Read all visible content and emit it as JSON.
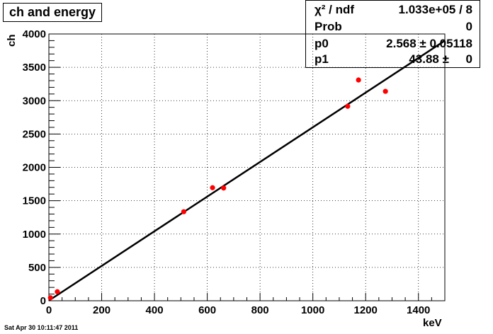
{
  "title": "ch and energy",
  "stats": {
    "rows": [
      {
        "label": "χ² / ndf",
        "value": "1.033e+05 / 8"
      },
      {
        "label": "Prob",
        "value": "0"
      },
      {
        "label": "p0",
        "value": "2.568 ± 0.05118"
      },
      {
        "label": "p1",
        "value": "43.88 ±     0"
      }
    ]
  },
  "timestamp": "Sat Apr 30 10:11:47 2011",
  "colors": {
    "points": "#ff0000",
    "fit_line": "#000000",
    "frame": "#000000",
    "grid": "#000000"
  },
  "chart_data": {
    "type": "scatter",
    "title": "ch and energy",
    "xlabel": "keV",
    "ylabel": "ch",
    "xlim": [
      0,
      1500
    ],
    "ylim": [
      0,
      4000
    ],
    "xticks": [
      0,
      200,
      400,
      600,
      800,
      1000,
      1200,
      1400
    ],
    "yticks": [
      0,
      500,
      1000,
      1500,
      2000,
      2500,
      3000,
      3500,
      4000
    ],
    "grid": true,
    "points": {
      "x": [
        6,
        32,
        511,
        620,
        662,
        1132,
        1173,
        1275
      ],
      "y": [
        45,
        135,
        1335,
        1695,
        1690,
        2915,
        3310,
        3140
      ]
    },
    "fit_line": {
      "x": [
        0,
        1500
      ],
      "y": [
        2.568,
        3900
      ]
    }
  }
}
